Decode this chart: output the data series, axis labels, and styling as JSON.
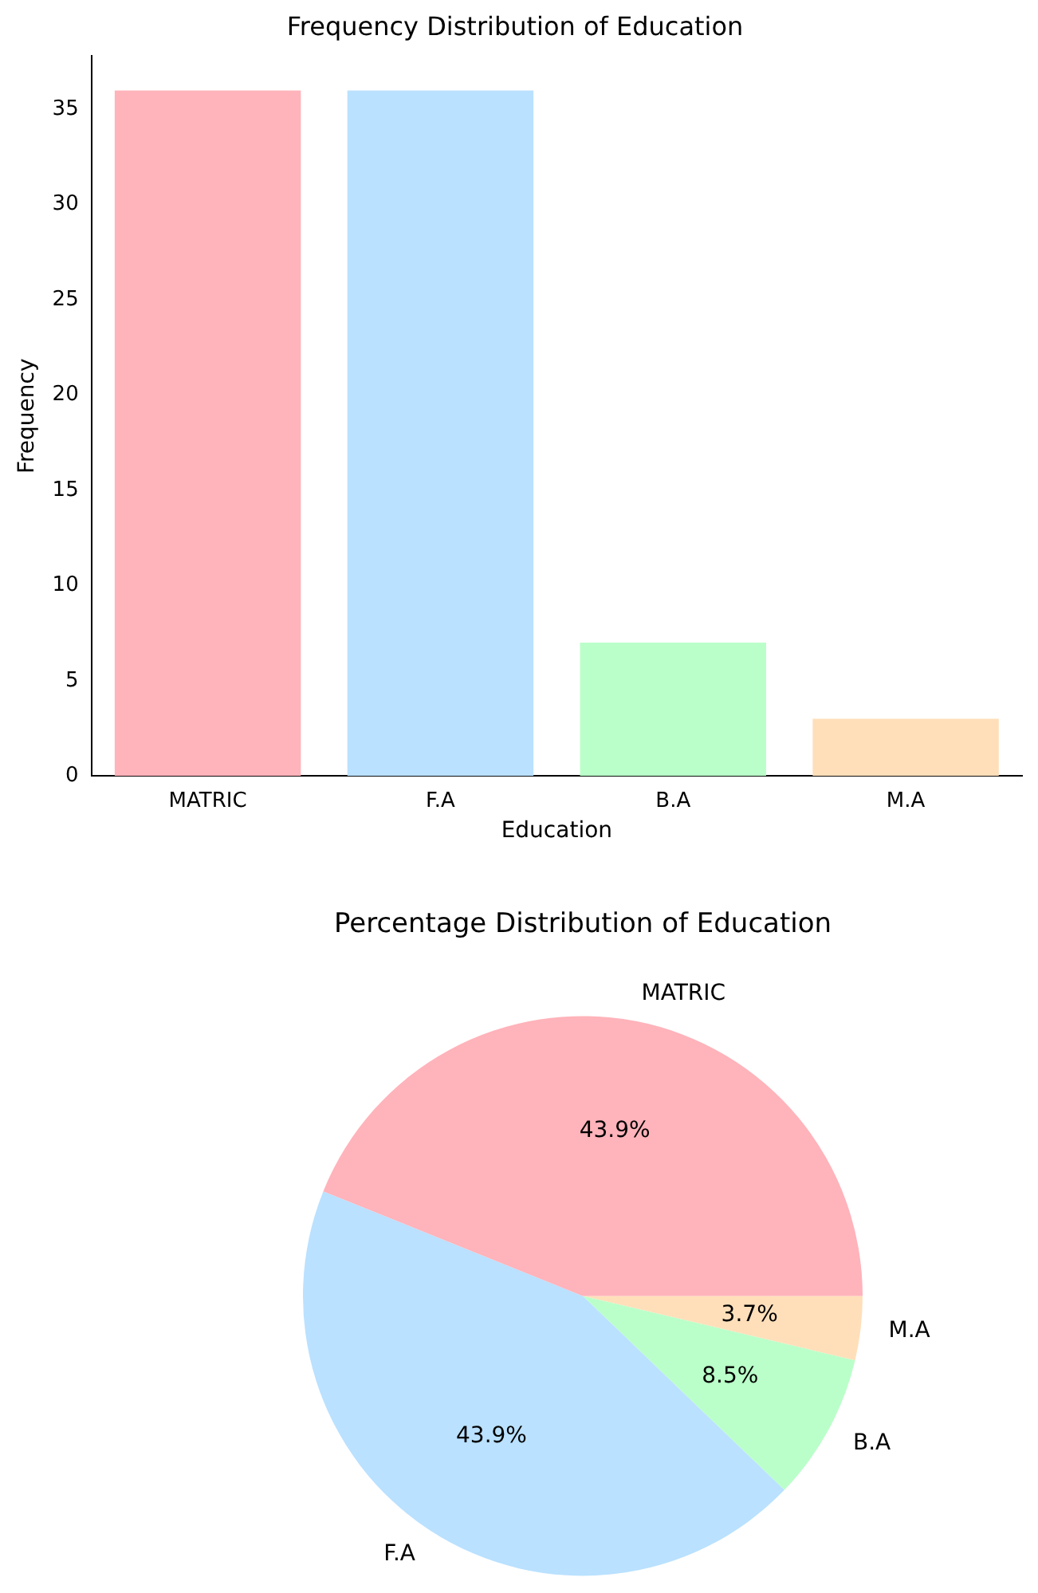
{
  "chart_data": [
    {
      "type": "bar",
      "title": "Frequency Distribution of Education",
      "xlabel": "Education",
      "ylabel": "Frequency",
      "categories": [
        "MATRIC",
        "F.A",
        "B.A",
        "M.A"
      ],
      "values": [
        36,
        36,
        7,
        3
      ],
      "colors": [
        "#ffb3ba",
        "#bae1ff",
        "#baffc9",
        "#ffdfba"
      ],
      "ylim": [
        0,
        37.8
      ],
      "yticks": [
        0,
        5,
        10,
        15,
        20,
        25,
        30,
        35
      ],
      "grid": false,
      "legend": false
    },
    {
      "type": "pie",
      "title": "Percentage Distribution of Education",
      "categories": [
        "MATRIC",
        "F.A",
        "B.A",
        "M.A"
      ],
      "values": [
        43.9,
        43.9,
        8.5,
        3.7
      ],
      "colors": [
        "#ffb3ba",
        "#bae1ff",
        "#baffc9",
        "#ffdfba"
      ],
      "value_labels": [
        "43.9%",
        "43.9%",
        "8.5%",
        "3.7%"
      ],
      "legend": false
    }
  ]
}
